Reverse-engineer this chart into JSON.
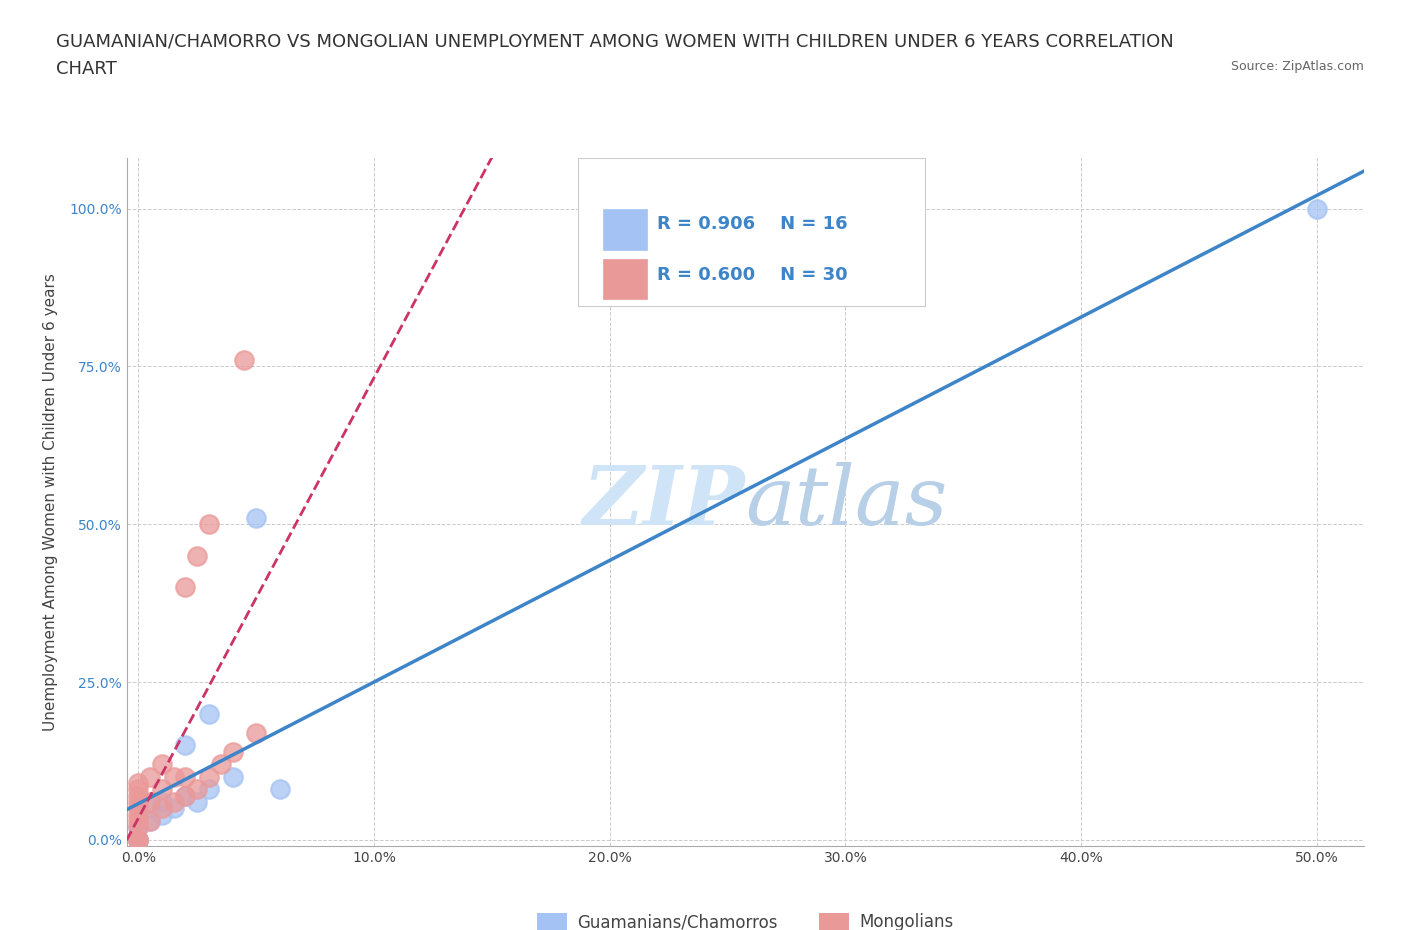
{
  "title_line1": "GUAMANIAN/CHAMORRO VS MONGOLIAN UNEMPLOYMENT AMONG WOMEN WITH CHILDREN UNDER 6 YEARS CORRELATION",
  "title_line2": "CHART",
  "source": "Source: ZipAtlas.com",
  "ylabel": "Unemployment Among Women with Children Under 6 years",
  "x_ticks": [
    0.0,
    0.1,
    0.2,
    0.3,
    0.4,
    0.5
  ],
  "x_tick_labels": [
    "0.0%",
    "10.0%",
    "20.0%",
    "30.0%",
    "40.0%",
    "50.0%"
  ],
  "y_ticks": [
    0.0,
    0.25,
    0.5,
    0.75,
    1.0
  ],
  "y_tick_labels": [
    "0.0%",
    "25.0%",
    "50.0%",
    "75.0%",
    "100.0%"
  ],
  "xlim": [
    -0.005,
    0.52
  ],
  "ylim": [
    -0.01,
    1.08
  ],
  "blue_color": "#a4c2f4",
  "pink_color": "#ea9999",
  "blue_line_color": "#3d85c8",
  "pink_line_color": "#cc3366",
  "watermark_color": "#d0e4f7",
  "legend_r_blue": "R = 0.906",
  "legend_n_blue": "N = 16",
  "legend_r_pink": "R = 0.600",
  "legend_n_pink": "N = 30",
  "legend_label_blue": "Guamanians/Chamorros",
  "legend_label_pink": "Mongolians",
  "blue_x": [
    0.0,
    0.0,
    0.005,
    0.005,
    0.01,
    0.01,
    0.015,
    0.02,
    0.02,
    0.025,
    0.03,
    0.03,
    0.04,
    0.05,
    0.06,
    0.5
  ],
  "blue_y": [
    0.0,
    0.02,
    0.03,
    0.05,
    0.04,
    0.06,
    0.05,
    0.07,
    0.15,
    0.06,
    0.08,
    0.2,
    0.1,
    0.51,
    0.08,
    1.0
  ],
  "pink_x": [
    0.0,
    0.0,
    0.0,
    0.0,
    0.0,
    0.0,
    0.0,
    0.0,
    0.0,
    0.0,
    0.0,
    0.005,
    0.005,
    0.005,
    0.01,
    0.01,
    0.01,
    0.015,
    0.015,
    0.02,
    0.02,
    0.02,
    0.025,
    0.025,
    0.03,
    0.03,
    0.035,
    0.04,
    0.045,
    0.05
  ],
  "pink_y": [
    0.0,
    0.0,
    0.0,
    0.02,
    0.03,
    0.04,
    0.05,
    0.06,
    0.07,
    0.08,
    0.09,
    0.03,
    0.06,
    0.1,
    0.05,
    0.08,
    0.12,
    0.06,
    0.1,
    0.07,
    0.1,
    0.4,
    0.08,
    0.45,
    0.1,
    0.5,
    0.12,
    0.14,
    0.76,
    0.17
  ],
  "background_color": "#ffffff",
  "title_fontsize": 13,
  "axis_label_fontsize": 11,
  "tick_fontsize": 10,
  "legend_fontsize": 13
}
